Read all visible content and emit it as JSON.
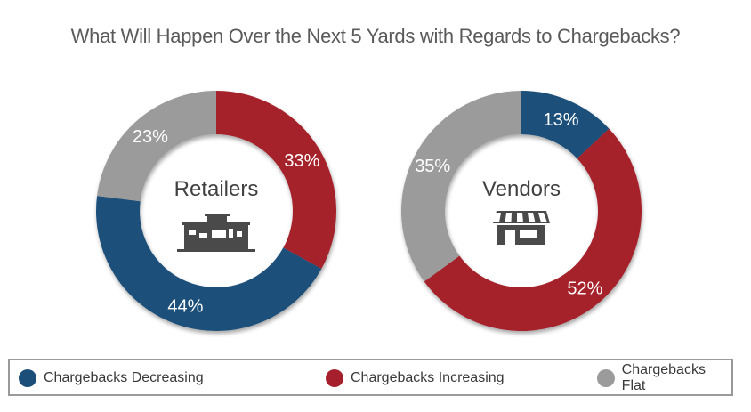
{
  "chart_data": {
    "type": "pie",
    "title": "What Will Happen Over the Next 5 Yards with Regards to Chargebacks?",
    "legend_placement": "bottom",
    "series": [
      {
        "name": "Chargebacks Decreasing",
        "color": "#1b4f7a"
      },
      {
        "name": "Chargebacks Increasing",
        "color": "#a5202c"
      },
      {
        "name": "Chargebacks Flat",
        "color": "#9b9b9b"
      }
    ],
    "charts": [
      {
        "label": "Retailers",
        "icon": "storefront-building-icon",
        "slices": [
          {
            "series": "Chargebacks Increasing",
            "value": 33,
            "label": "33%"
          },
          {
            "series": "Chargebacks Decreasing",
            "value": 44,
            "label": "44%"
          },
          {
            "series": "Chargebacks Flat",
            "value": 23,
            "label": "23%"
          }
        ]
      },
      {
        "label": "Vendors",
        "icon": "shop-awning-icon",
        "slices": [
          {
            "series": "Chargebacks Decreasing",
            "value": 13,
            "label": "13%"
          },
          {
            "series": "Chargebacks Increasing",
            "value": 52,
            "label": "52%"
          },
          {
            "series": "Chargebacks Flat",
            "value": 35,
            "label": "35%"
          }
        ]
      }
    ]
  }
}
